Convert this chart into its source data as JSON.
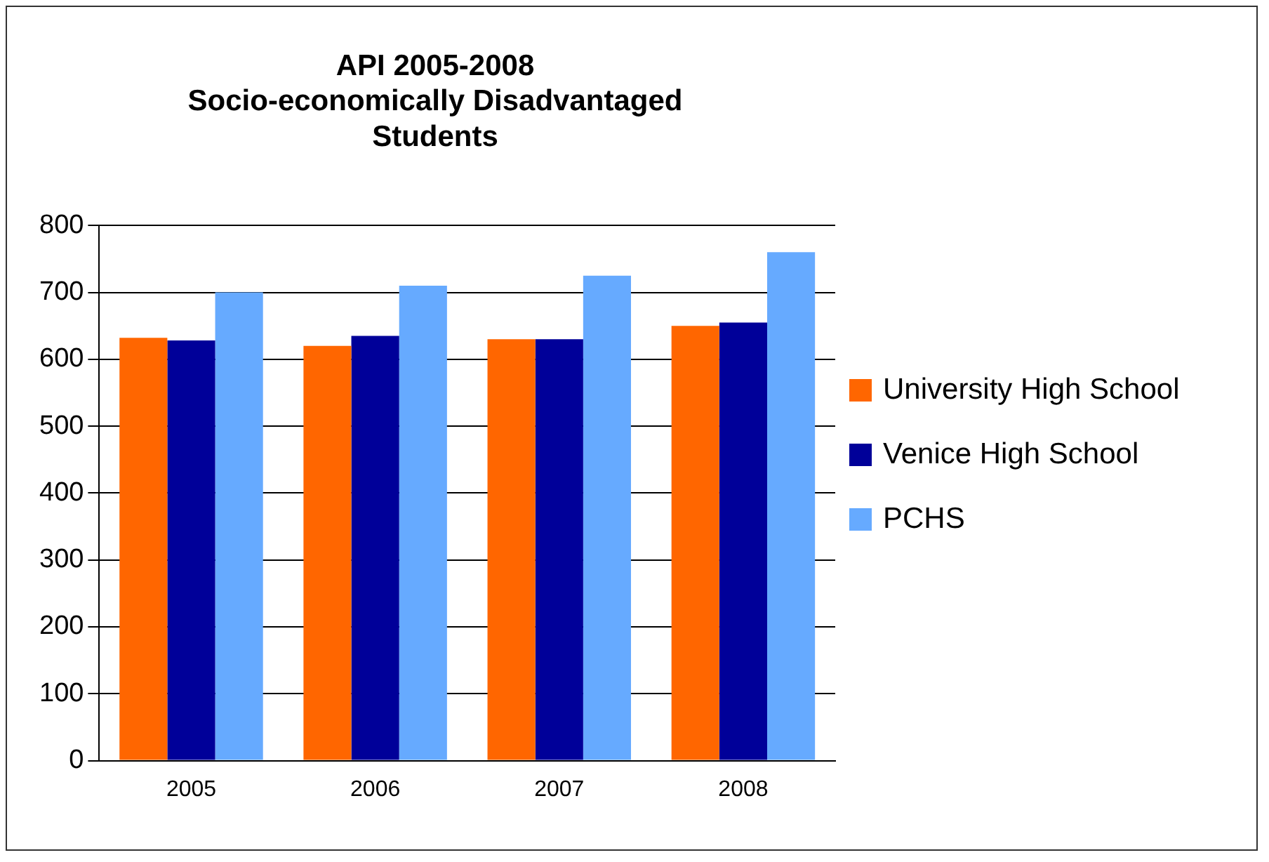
{
  "chart_data": {
    "type": "bar",
    "title": "API 2005-2008",
    "subtitle": "Socio-economically Disadvantaged Students",
    "categories": [
      "2005",
      "2006",
      "2007",
      "2008"
    ],
    "series": [
      {
        "name": "University High School",
        "color": "#ff6600",
        "values": [
          632,
          620,
          630,
          650
        ]
      },
      {
        "name": "Venice High School",
        "color": "#000099",
        "values": [
          628,
          635,
          630,
          655
        ]
      },
      {
        "name": "PCHS",
        "color": "#66aaff",
        "values": [
          700,
          710,
          725,
          760
        ]
      }
    ],
    "ylim": [
      0,
      800
    ],
    "yticks": [
      0,
      100,
      200,
      300,
      400,
      500,
      600,
      700,
      800
    ],
    "grid": "y",
    "legend": "right"
  }
}
